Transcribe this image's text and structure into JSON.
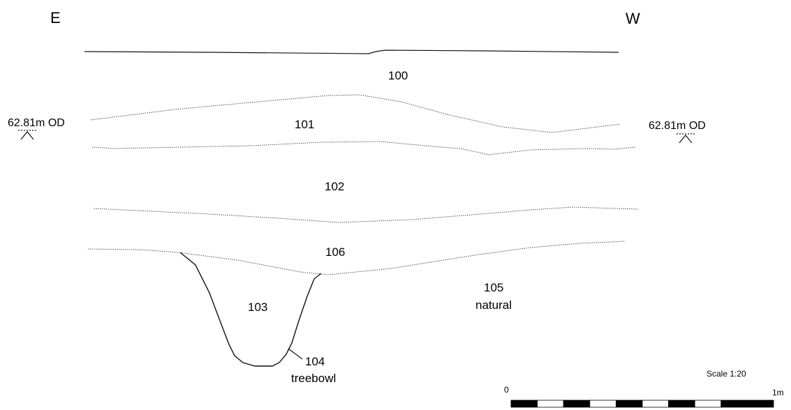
{
  "orientation": {
    "left": "E",
    "right": "W"
  },
  "datum": {
    "left_label": "62.81m OD",
    "right_label": "62.81m OD"
  },
  "contexts": [
    {
      "id": "ctx-100",
      "number": "100",
      "description": ""
    },
    {
      "id": "ctx-101",
      "number": "101",
      "description": ""
    },
    {
      "id": "ctx-102",
      "number": "102",
      "description": ""
    },
    {
      "id": "ctx-106",
      "number": "106",
      "description": ""
    },
    {
      "id": "ctx-103",
      "number": "103",
      "description": ""
    },
    {
      "id": "ctx-105",
      "number": "105",
      "description": "natural"
    },
    {
      "id": "ctx-104",
      "number": "104",
      "description": "treebowl"
    }
  ],
  "scale": {
    "label": "Scale 1:20",
    "start": "0",
    "end": "1m",
    "segments": 10
  },
  "colors": {
    "line": "#111111",
    "dotted": "#333333",
    "background": "#ffffff"
  }
}
